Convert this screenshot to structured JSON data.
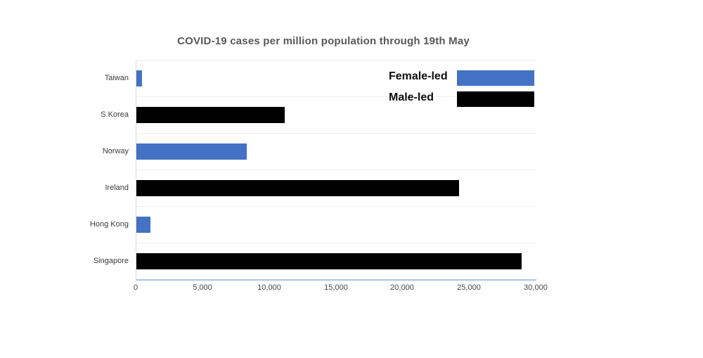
{
  "chart_data": {
    "type": "bar",
    "orientation": "horizontal",
    "title": "COVID-19 cases per million population through 19th May",
    "categories": [
      "Taiwan",
      "S.Korea",
      "Norway",
      "Ireland",
      "Hong Kong",
      "Singapore"
    ],
    "values": [
      440,
      11100,
      8300,
      24200,
      1050,
      28900
    ],
    "groups": [
      "Female-led",
      "Male-led",
      "Female-led",
      "Male-led",
      "Female-led",
      "Male-led"
    ],
    "legend": [
      {
        "label": "Female-led",
        "color": "#4472C4"
      },
      {
        "label": "Male-led",
        "color": "#000000"
      }
    ],
    "legend_position": "top-right-inside",
    "xlabel": "",
    "ylabel": "",
    "xlim": [
      0,
      30000
    ],
    "x_tick_values": [
      0,
      5000,
      10000,
      15000,
      20000,
      25000,
      30000
    ],
    "x_tick_labels": [
      "0",
      "5,000",
      "10,000",
      "15,000",
      "20,000",
      "25,000",
      "30,000"
    ],
    "grid": "faint horizontal row-boundary lines",
    "colors": {
      "female_led_bar": "#4472C4",
      "male_led_bar": "#000000",
      "title_text": "#595959",
      "axis_baseline": "#a9c5e2",
      "axis_left_line": "#d9d9d9",
      "gridline": "#f1efee"
    }
  }
}
